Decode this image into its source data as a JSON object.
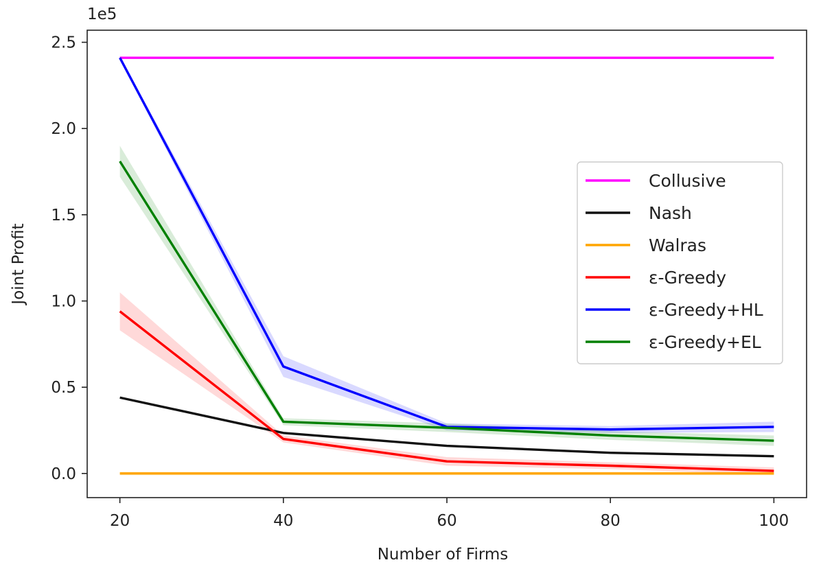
{
  "chart_data": {
    "type": "line",
    "xlabel": "Number of Firms",
    "ylabel": "Joint Profit",
    "offset_label": "1e5",
    "x": [
      20,
      40,
      60,
      80,
      100
    ],
    "x_ticks": [
      "20",
      "40",
      "60",
      "80",
      "100"
    ],
    "y_ticks": [
      "0.0",
      "0.5",
      "1.0",
      "1.5",
      "2.0",
      "2.5"
    ],
    "y_tick_values": [
      0,
      0.5,
      1.0,
      1.5,
      2.0,
      2.5
    ],
    "xlim": [
      16,
      104
    ],
    "ylim": [
      -0.14,
      2.57
    ],
    "y_scale_note": "values in units of 1e5",
    "legend_position": "center-right",
    "grid": false,
    "series": [
      {
        "name": "Collusive",
        "color": "#ff00ff",
        "values": [
          2.41,
          2.41,
          2.41,
          2.41,
          2.41
        ]
      },
      {
        "name": "Nash",
        "color": "#111111",
        "values": [
          0.44,
          0.235,
          0.16,
          0.12,
          0.1
        ]
      },
      {
        "name": "Walras",
        "color": "#ffa500",
        "values": [
          0.0,
          0.0,
          0.0,
          0.0,
          0.0
        ],
        "band": [
          0.01,
          0.01,
          0.01,
          0.01,
          0.01
        ]
      },
      {
        "name": "ε-Greedy",
        "color": "#ff0000",
        "values": [
          0.94,
          0.2,
          0.07,
          0.045,
          0.015
        ],
        "band": [
          0.11,
          0.02,
          0.025,
          0.02,
          0.02
        ]
      },
      {
        "name": "ε-Greedy+HL",
        "color": "#0000ff",
        "values": [
          2.41,
          0.62,
          0.27,
          0.255,
          0.27
        ],
        "band": [
          0.01,
          0.06,
          0.02,
          0.02,
          0.03
        ]
      },
      {
        "name": "ε-Greedy+EL",
        "color": "#008000",
        "values": [
          1.81,
          0.3,
          0.265,
          0.22,
          0.19
        ],
        "band": [
          0.09,
          0.02,
          0.025,
          0.025,
          0.03
        ]
      }
    ]
  }
}
